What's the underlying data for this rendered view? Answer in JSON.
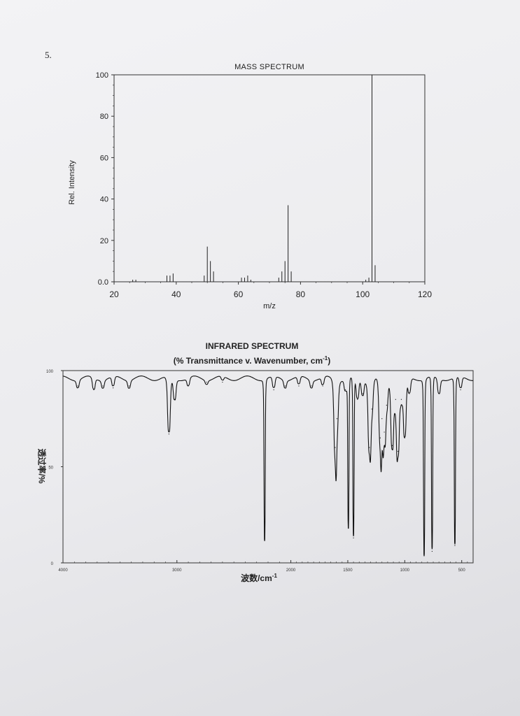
{
  "question_number": "5.",
  "chart_data": [
    {
      "type": "bar",
      "title": "MASS SPECTRUM",
      "xlabel": "m/z",
      "ylabel": "Rel. Intensity",
      "xlim": [
        20,
        120
      ],
      "ylim": [
        0,
        100
      ],
      "x_ticks": [
        "20",
        "40",
        "60",
        "80",
        "100",
        "120"
      ],
      "y_ticks": [
        "0.0",
        "20",
        "40",
        "60",
        "80",
        "100"
      ],
      "grid": false,
      "x": [
        26,
        27,
        37,
        38,
        39,
        49,
        50,
        51,
        52,
        61,
        62,
        63,
        64,
        73,
        74,
        75,
        76,
        77,
        101,
        102,
        103,
        104
      ],
      "values": [
        1,
        1,
        3,
        3,
        4,
        3,
        17,
        10,
        5,
        2,
        2,
        3,
        1,
        2,
        5,
        10,
        37,
        5,
        1,
        2,
        100,
        8
      ]
    },
    {
      "type": "line",
      "title": "INFRARED SPECTRUM",
      "subtitle": "(% Transmittance v. Wavenumber, cm",
      "subtitle_sup": "-1",
      "subtitle_end": ")",
      "xlabel": "波数/cm",
      "xlabel_sup": "-1",
      "ylabel": "透过率/%",
      "xlim": [
        4000,
        400
      ],
      "ylim": [
        0,
        100
      ],
      "x_ticks": [
        "4000",
        "3000",
        "2000",
        "1500",
        "1000",
        "500"
      ],
      "x_tick_values": [
        4000,
        3000,
        2000,
        1500,
        1000,
        500
      ],
      "y_ticks": [
        "0",
        "50",
        "100"
      ],
      "baseline": 96,
      "peaks": [
        {
          "x": 3870,
          "y": 92
        },
        {
          "x": 3730,
          "y": 90
        },
        {
          "x": 3650,
          "y": 92
        },
        {
          "x": 3560,
          "y": 91
        },
        {
          "x": 3420,
          "y": 92
        },
        {
          "x": 3070,
          "y": 67
        },
        {
          "x": 3020,
          "y": 85
        },
        {
          "x": 2900,
          "y": 92
        },
        {
          "x": 2740,
          "y": 94
        },
        {
          "x": 2600,
          "y": 94
        },
        {
          "x": 2230,
          "y": 12
        },
        {
          "x": 2150,
          "y": 90
        },
        {
          "x": 2050,
          "y": 92
        },
        {
          "x": 1930,
          "y": 92
        },
        {
          "x": 1820,
          "y": 92
        },
        {
          "x": 1720,
          "y": 92
        },
        {
          "x": 1610,
          "y": 60
        },
        {
          "x": 1595,
          "y": 75
        },
        {
          "x": 1520,
          "y": 90
        },
        {
          "x": 1495,
          "y": 18
        },
        {
          "x": 1450,
          "y": 13
        },
        {
          "x": 1415,
          "y": 85
        },
        {
          "x": 1370,
          "y": 88
        },
        {
          "x": 1310,
          "y": 60
        },
        {
          "x": 1290,
          "y": 80
        },
        {
          "x": 1215,
          "y": 65
        },
        {
          "x": 1200,
          "y": 75
        },
        {
          "x": 1180,
          "y": 68
        },
        {
          "x": 1160,
          "y": 82
        },
        {
          "x": 1110,
          "y": 61
        },
        {
          "x": 1080,
          "y": 85
        },
        {
          "x": 1060,
          "y": 58
        },
        {
          "x": 1030,
          "y": 85
        },
        {
          "x": 1000,
          "y": 65
        },
        {
          "x": 960,
          "y": 88
        },
        {
          "x": 830,
          "y": 4
        },
        {
          "x": 760,
          "y": 6
        },
        {
          "x": 700,
          "y": 88
        },
        {
          "x": 560,
          "y": 9
        },
        {
          "x": 510,
          "y": 90
        }
      ]
    }
  ]
}
